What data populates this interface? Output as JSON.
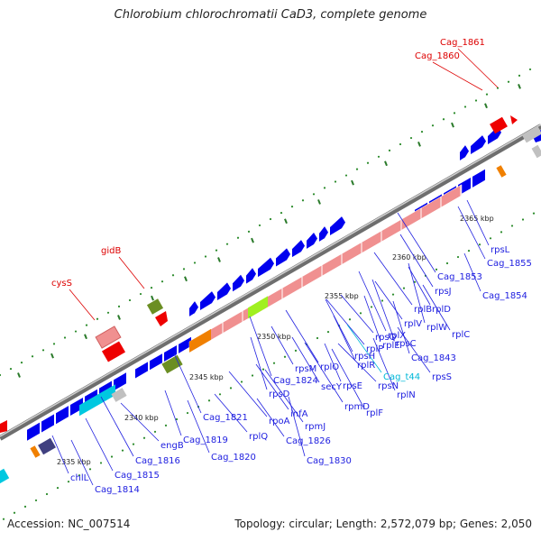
{
  "title": "Chlorobium chlorochromatii CaD3, complete genome",
  "footer": {
    "accession": "Accession: NC_007514",
    "summary": "Topology: circular; Length: 2,572,079 bp; Genes: 2,050"
  },
  "ticks": [
    "2335 kbp",
    "2340 kbp",
    "2345 kbp",
    "2350 kbp",
    "2355 kbp",
    "2360 kbp",
    "2365 kbp"
  ],
  "labels": {
    "blue": [
      "chlL",
      "Cag_1814",
      "Cag_1815",
      "Cag_1816",
      "engB",
      "Cag_1819",
      "Cag_1820",
      "Cag_1821",
      "rplQ",
      "rpoA",
      "rpsD",
      "Cag_1824",
      "Cag_1826",
      "infA",
      "rpmJ",
      "Cag_1830",
      "rpsM",
      "secY",
      "rplO",
      "rpmD",
      "rpsE",
      "rplR",
      "rpsH",
      "rplF",
      "rpsN",
      "rplE",
      "rplN",
      "rplX",
      "rpsQ",
      "rplP",
      "Cag_1843",
      "rpsC",
      "rplV",
      "rpsS",
      "rplB",
      "rplW",
      "rplD",
      "rplC",
      "rpsJ",
      "Cag_1853",
      "Cag_1854",
      "rpsL",
      "Cag_1855"
    ],
    "red": [
      "cysS",
      "gidB",
      "Cag_1860",
      "Cag_1861"
    ],
    "cyan": [
      "Cag_t44"
    ]
  },
  "colors": {
    "cds": "#0000ee",
    "rrna_like": "#f09090",
    "trna": "#00c8e0",
    "red_gene": "#ee0000",
    "olive": "#6b8e23",
    "orange": "#f08000",
    "lime": "#a0f020",
    "backbone": "#808080",
    "label_blue": "#2020e0",
    "label_red": "#dd0000"
  }
}
